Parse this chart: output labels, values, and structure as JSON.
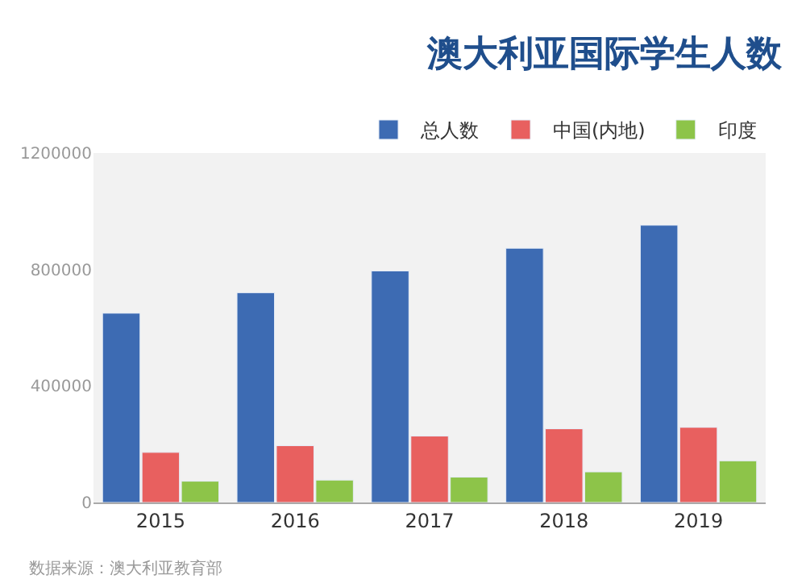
{
  "chart_data": {
    "type": "bar",
    "title": "澳大利亚国际学生人数",
    "categories": [
      "2015",
      "2016",
      "2017",
      "2018",
      "2019"
    ],
    "series": [
      {
        "name": "总人数",
        "color": "#3d6bb3",
        "values": [
          650000,
          720000,
          795000,
          873000,
          952000
        ]
      },
      {
        "name": "中国(内地)",
        "color": "#e8605f",
        "values": [
          172000,
          195000,
          228000,
          253000,
          258000
        ]
      },
      {
        "name": "印度",
        "color": "#8dc449",
        "values": [
          73000,
          77000,
          87000,
          105000,
          143000
        ]
      }
    ],
    "ylim": [
      0,
      1200000
    ],
    "yticks": [
      0,
      400000,
      800000,
      1200000
    ],
    "grid": false,
    "legend": "top right",
    "annotations": [
      "数据来源：澳大利亚教育部"
    ]
  }
}
